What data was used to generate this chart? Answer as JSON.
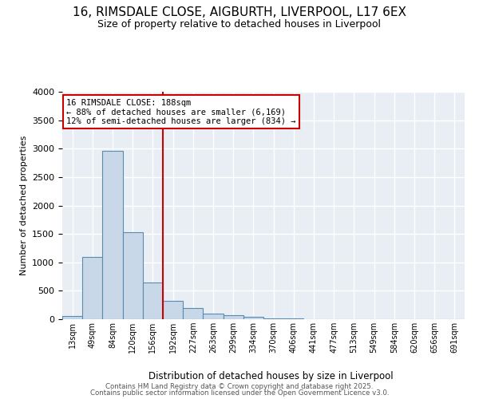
{
  "title_line1": "16, RIMSDALE CLOSE, AIGBURTH, LIVERPOOL, L17 6EX",
  "title_line2": "Size of property relative to detached houses in Liverpool",
  "xlabel": "Distribution of detached houses by size in Liverpool",
  "ylabel": "Number of detached properties",
  "bar_values": [
    50,
    1100,
    2960,
    1530,
    650,
    320,
    190,
    100,
    70,
    45,
    20,
    10,
    5,
    5,
    3,
    2,
    2,
    1,
    1,
    1
  ],
  "bin_labels": [
    "13sqm",
    "49sqm",
    "84sqm",
    "120sqm",
    "156sqm",
    "192sqm",
    "227sqm",
    "263sqm",
    "299sqm",
    "334sqm",
    "370sqm",
    "406sqm",
    "441sqm",
    "477sqm",
    "513sqm",
    "549sqm",
    "584sqm",
    "620sqm",
    "656sqm",
    "691sqm"
  ],
  "bar_color": "#c8d8e8",
  "bar_edge_color": "#5a8ab0",
  "bg_color": "#e8eef4",
  "grid_color": "#ffffff",
  "vline_x_index": 5,
  "vline_color": "#cc0000",
  "annotation_text": "16 RIMSDALE CLOSE: 188sqm\n← 88% of detached houses are smaller (6,169)\n12% of semi-detached houses are larger (834) →",
  "annotation_box_color": "#ffffff",
  "annotation_box_edge": "#cc0000",
  "footer_line1": "Contains HM Land Registry data © Crown copyright and database right 2025.",
  "footer_line2": "Contains public sector information licensed under the Open Government Licence v3.0.",
  "ylim": [
    0,
    4000
  ],
  "yticks": [
    0,
    500,
    1000,
    1500,
    2000,
    2500,
    3000,
    3500,
    4000
  ],
  "fig_bg": "#ffffff"
}
